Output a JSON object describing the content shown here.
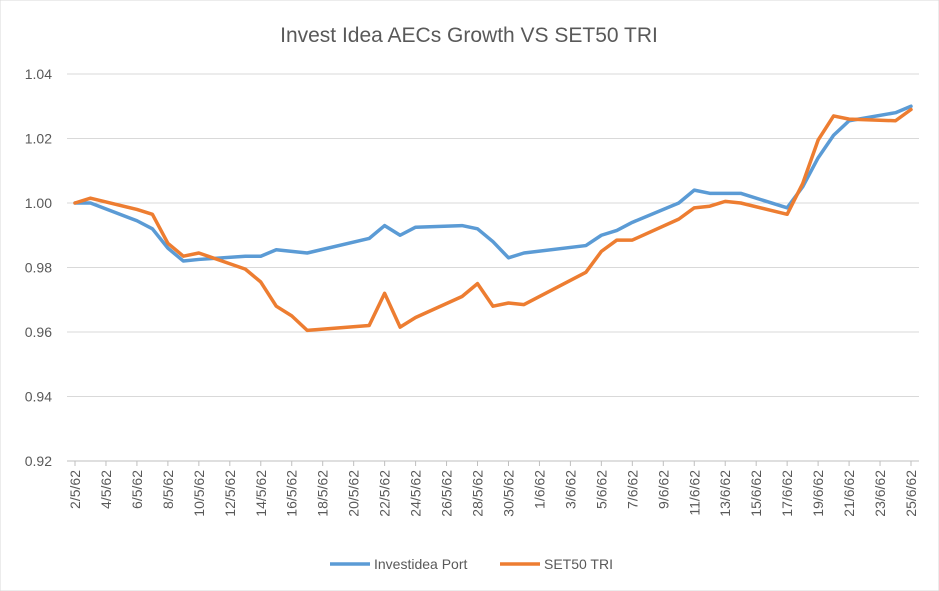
{
  "chart_data": {
    "type": "line",
    "title": "Invest Idea AECs Growth VS SET50 TRI",
    "x": [
      "2/5/62",
      "3/5/62",
      "6/5/62",
      "7/5/62",
      "8/5/62",
      "9/5/62",
      "10/5/62",
      "13/5/62",
      "14/5/62",
      "15/5/62",
      "16/5/62",
      "17/5/62",
      "21/5/62",
      "22/5/62",
      "23/5/62",
      "24/5/62",
      "27/5/62",
      "28/5/62",
      "29/5/62",
      "30/5/62",
      "31/5/62",
      "4/6/62",
      "5/6/62",
      "6/6/62",
      "7/6/62",
      "10/6/62",
      "11/6/62",
      "12/6/62",
      "13/6/62",
      "14/6/62",
      "17/6/62",
      "18/6/62",
      "19/6/62",
      "20/6/62",
      "21/6/62",
      "24/6/62",
      "25/6/62"
    ],
    "series": [
      {
        "name": "Investidea Port",
        "color": "#5b9bd5",
        "values": [
          1.0,
          1.0,
          0.9945,
          0.992,
          0.986,
          0.982,
          0.9825,
          0.9835,
          0.9835,
          0.9855,
          0.985,
          0.9845,
          0.989,
          0.993,
          0.99,
          0.9925,
          0.993,
          0.992,
          0.988,
          0.983,
          0.9845,
          0.9868,
          0.99,
          0.9915,
          0.994,
          1.0,
          1.004,
          1.003,
          1.003,
          1.003,
          0.9985,
          1.005,
          1.014,
          1.021,
          1.0255,
          1.028,
          1.03
        ]
      },
      {
        "name": "SET50 TRI",
        "color": "#ed7d31",
        "values": [
          1.0,
          1.0015,
          0.998,
          0.9965,
          0.9875,
          0.9835,
          0.9845,
          0.9795,
          0.9755,
          0.968,
          0.965,
          0.9605,
          0.962,
          0.972,
          0.9615,
          0.9645,
          0.971,
          0.975,
          0.968,
          0.969,
          0.9685,
          0.9785,
          0.985,
          0.9885,
          0.9885,
          0.995,
          0.9985,
          0.999,
          1.0005,
          1.0,
          0.9965,
          1.006,
          1.0195,
          1.027,
          1.026,
          1.0255,
          1.029
        ]
      }
    ],
    "xlim": [
      "2/5/62",
      "25/6/62"
    ],
    "xticks": [
      "2/5/62",
      "4/5/62",
      "6/5/62",
      "8/5/62",
      "10/5/62",
      "12/5/62",
      "14/5/62",
      "16/5/62",
      "18/5/62",
      "20/5/62",
      "22/5/62",
      "24/5/62",
      "26/5/62",
      "28/5/62",
      "30/5/62",
      "1/6/62",
      "3/6/62",
      "5/6/62",
      "7/6/62",
      "9/6/62",
      "11/6/62",
      "13/6/62",
      "15/6/62",
      "17/6/62",
      "19/6/62",
      "21/6/62",
      "23/6/62",
      "25/6/62"
    ],
    "ylim": [
      0.92,
      1.04
    ],
    "yticks": [
      0.92,
      0.94,
      0.96,
      0.98,
      {
        "value": 1.0,
        "label": "1.00"
      },
      1.02,
      1.04
    ],
    "grid": true,
    "legend": "bottom"
  }
}
